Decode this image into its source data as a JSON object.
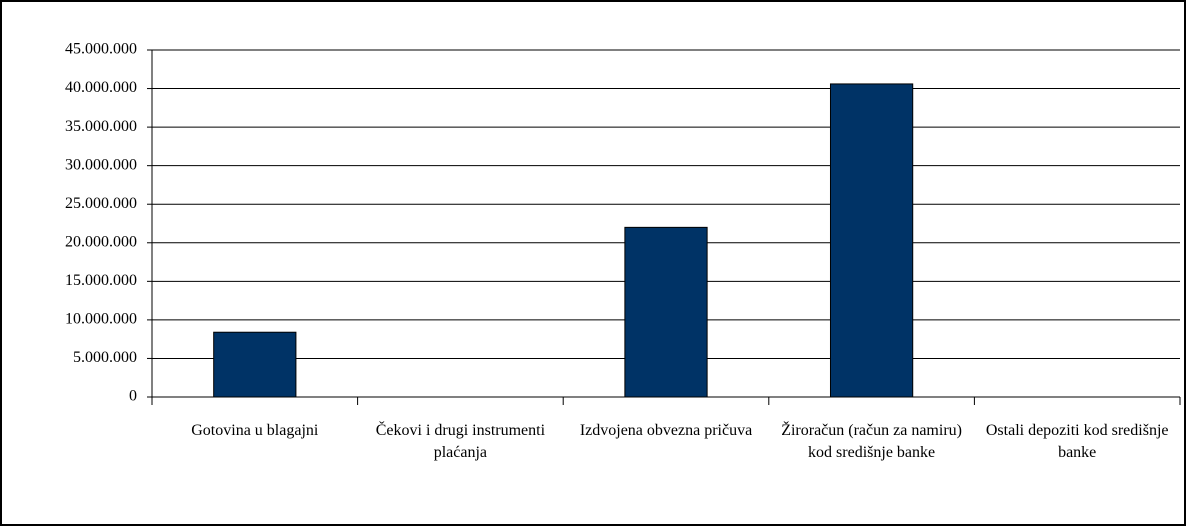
{
  "chart_data": {
    "type": "bar",
    "categories": [
      "Gotovina u blagajni",
      "Čekovi i drugi instrumenti plaćanja",
      "Izdvojena obvezna pričuva",
      "Žiroračun (račun za namiru) kod središnje banke",
      "Ostali depoziti kod središnje banke"
    ],
    "values": [
      8400000,
      0,
      22000000,
      40600000,
      0
    ],
    "color": "#003366",
    "ylim": [
      0,
      45000000
    ],
    "yticks": [
      0,
      {
        "value": 5000000,
        "label": "5.000.000"
      },
      {
        "value": 10000000,
        "label": "10.000.000"
      },
      {
        "value": 15000000,
        "label": "15.000.000"
      },
      {
        "value": 20000000,
        "label": "20.000.000"
      },
      {
        "value": 25000000,
        "label": "25.000.000"
      },
      {
        "value": 30000000,
        "label": "30.000.000"
      },
      {
        "value": 35000000,
        "label": "35.000.000"
      },
      {
        "value": 40000000,
        "label": "40.000.000"
      },
      {
        "value": 45000000,
        "label": "45.000.000"
      }
    ],
    "grid": true
  }
}
